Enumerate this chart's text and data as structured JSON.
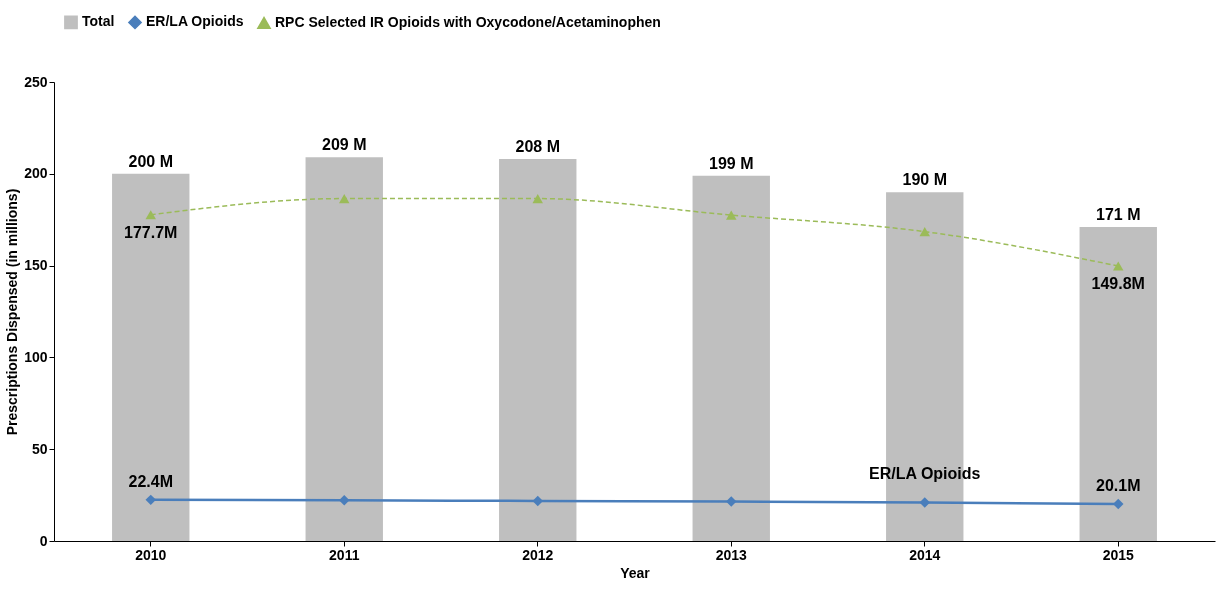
{
  "chart_data": {
    "type": "bar",
    "xlabel": "Year",
    "ylabel": "Prescriptions Dispensed (in millions)",
    "categories": [
      "2010",
      "2011",
      "2012",
      "2013",
      "2014",
      "2015"
    ],
    "series": [
      {
        "name": "Total",
        "color": "#bfbfbf",
        "values": [
          200,
          209,
          208,
          199,
          190,
          171
        ],
        "value_labels": [
          "200 M",
          "209 M",
          "208 M",
          "199 M",
          "190 M",
          "171 M"
        ]
      },
      {
        "name": "ER/LA Opioids",
        "type": "line",
        "color": "#4a7ebb",
        "marker": "diamond",
        "line_style": "solid",
        "values": [
          22.4,
          22.2,
          21.8,
          21.5,
          21.0,
          20.1
        ],
        "value_labels": [
          "22.4M",
          null,
          null,
          null,
          null,
          "20.1M"
        ]
      },
      {
        "name": "RPC Selected IR Opioids with Oxycodone/Acetaminophen",
        "type": "line",
        "color": "#9bbb59",
        "marker": "triangle",
        "line_style": "dashed",
        "values": [
          177.7,
          186.5,
          186.5,
          177.5,
          168.5,
          149.8
        ],
        "value_labels": [
          "177.7M",
          null,
          null,
          null,
          null,
          "149.8M"
        ]
      }
    ],
    "annotations": [
      {
        "text": "ER/LA Opioids",
        "x": "2014",
        "y": 21.0
      }
    ],
    "ylim": [
      0,
      250
    ],
    "yticks": [
      0,
      50,
      100,
      150,
      200,
      250
    ],
    "grid": false,
    "legend": "top"
  }
}
